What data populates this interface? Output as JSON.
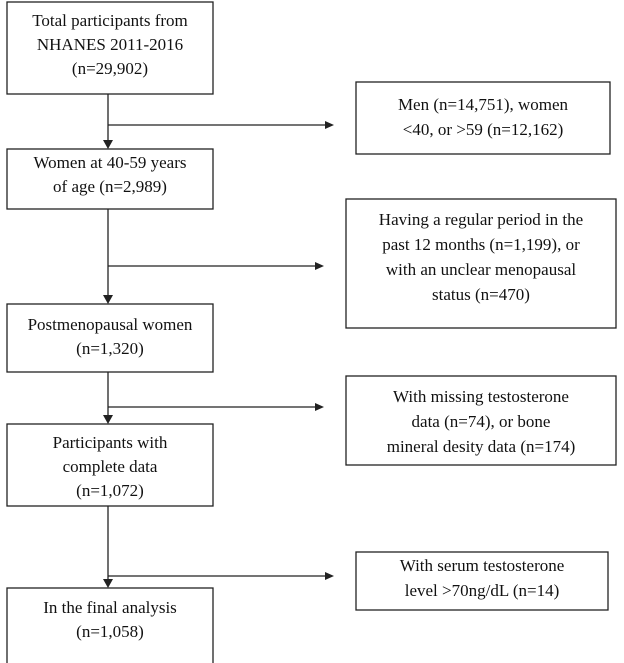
{
  "nodes": [
    {
      "lines": [
        "Total participants from",
        "NHANES 2011-2016",
        "(n=29,902)"
      ]
    },
    {
      "lines": [
        "Women at 40-59 years",
        "of age (n=2,989)"
      ]
    },
    {
      "lines": [
        "Postmenopausal women",
        "(n=1,320)"
      ]
    },
    {
      "lines": [
        "Participants with",
        "complete data",
        "(n=1,072)"
      ]
    },
    {
      "lines": [
        "In the final analysis",
        "(n=1,058)"
      ]
    }
  ],
  "exclusions": [
    {
      "lines": [
        "Men (n=14,751), women",
        "<40, or >59 (n=12,162)"
      ]
    },
    {
      "lines": [
        "Having a regular period in the",
        "past 12 months (n=1,199), or",
        "with an unclear menopausal",
        "status (n=470)"
      ]
    },
    {
      "lines": [
        "With missing testosterone",
        "data (n=74), or bone",
        "mineral desity data (n=174)"
      ]
    },
    {
      "lines": [
        "With serum testosterone",
        "level >70ng/dL (n=14)"
      ]
    }
  ]
}
